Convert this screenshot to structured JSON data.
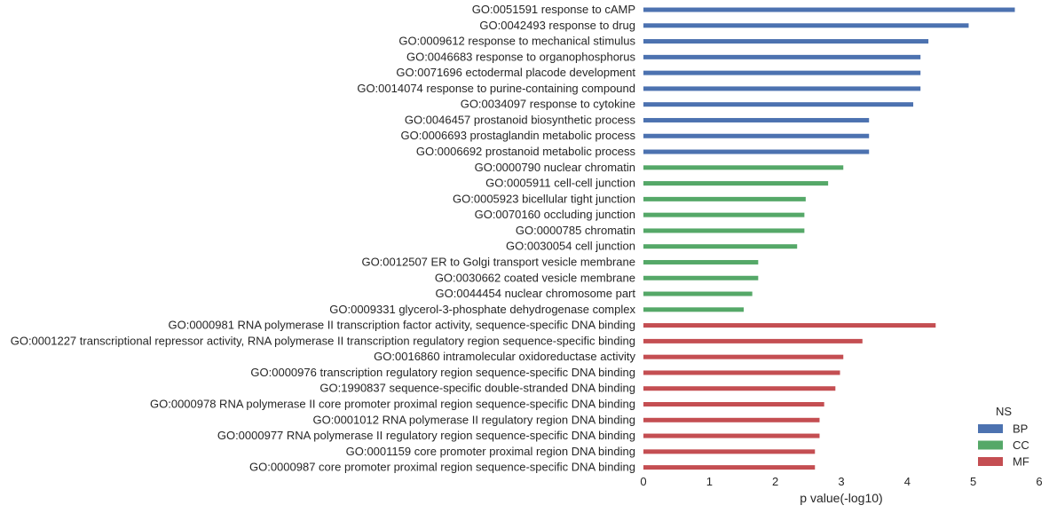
{
  "chart_data": {
    "type": "bar",
    "orientation": "horizontal",
    "title": "",
    "xlabel": "p value(-log10)",
    "ylabel": "",
    "xlim": [
      0,
      6
    ],
    "xticks": [
      0,
      1,
      2,
      3,
      4,
      5,
      6
    ],
    "grid": false,
    "legend": {
      "title": "NS",
      "placement": "bottom-right",
      "entries": [
        {
          "name": "BP",
          "color": "#4c72b0"
        },
        {
          "name": "CC",
          "color": "#55a868"
        },
        {
          "name": "MF",
          "color": "#c44e52"
        }
      ]
    },
    "categories": [
      "GO:0051591 response to cAMP",
      "GO:0042493 response to drug",
      "GO:0009612 response to mechanical stimulus",
      "GO:0046683 response to organophosphorus",
      "GO:0071696 ectodermal placode development",
      "GO:0014074 response to purine-containing compound",
      "GO:0034097 response to cytokine",
      "GO:0046457 prostanoid biosynthetic process",
      "GO:0006693 prostaglandin metabolic process",
      "GO:0006692 prostanoid metabolic process",
      "GO:0000790 nuclear chromatin",
      "GO:0005911 cell-cell junction",
      "GO:0005923 bicellular tight junction",
      "GO:0070160 occluding junction",
      "GO:0000785 chromatin",
      "GO:0030054 cell junction",
      "GO:0012507 ER to Golgi transport vesicle membrane",
      "GO:0030662 coated vesicle membrane",
      "GO:0044454 nuclear chromosome part",
      "GO:0009331 glycerol-3-phosphate dehydrogenase complex",
      "GO:0000981 RNA polymerase II transcription factor activity, sequence-specific DNA binding",
      "GO:0001227 transcriptional repressor activity, RNA polymerase II transcription regulatory region sequence-specific binding",
      "GO:0016860 intramolecular oxidoreductase activity",
      "GO:0000976 transcription regulatory region sequence-specific DNA binding",
      "GO:1990837 sequence-specific double-stranded DNA binding",
      "GO:0000978 RNA polymerase II core promoter proximal region sequence-specific DNA binding",
      "GO:0001012 RNA polymerase II regulatory region DNA binding",
      "GO:0000977 RNA polymerase II regulatory region sequence-specific DNA binding",
      "GO:0001159 core promoter proximal region DNA binding",
      "GO:0000987 core promoter proximal region sequence-specific DNA binding"
    ],
    "series": [
      {
        "name": "BP",
        "color": "#4c72b0",
        "values": [
          5.63,
          4.93,
          4.32,
          4.2,
          4.2,
          4.2,
          4.09,
          3.42,
          3.42,
          3.42,
          null,
          null,
          null,
          null,
          null,
          null,
          null,
          null,
          null,
          null,
          null,
          null,
          null,
          null,
          null,
          null,
          null,
          null,
          null,
          null
        ]
      },
      {
        "name": "CC",
        "color": "#55a868",
        "values": [
          null,
          null,
          null,
          null,
          null,
          null,
          null,
          null,
          null,
          null,
          3.03,
          2.8,
          2.46,
          2.44,
          2.44,
          2.33,
          1.74,
          1.74,
          1.65,
          1.52,
          null,
          null,
          null,
          null,
          null,
          null,
          null,
          null,
          null,
          null
        ]
      },
      {
        "name": "MF",
        "color": "#c44e52",
        "values": [
          null,
          null,
          null,
          null,
          null,
          null,
          null,
          null,
          null,
          null,
          null,
          null,
          null,
          null,
          null,
          null,
          null,
          null,
          null,
          null,
          4.43,
          3.32,
          3.03,
          2.98,
          2.91,
          2.74,
          2.67,
          2.67,
          2.6,
          2.6
        ]
      }
    ]
  }
}
